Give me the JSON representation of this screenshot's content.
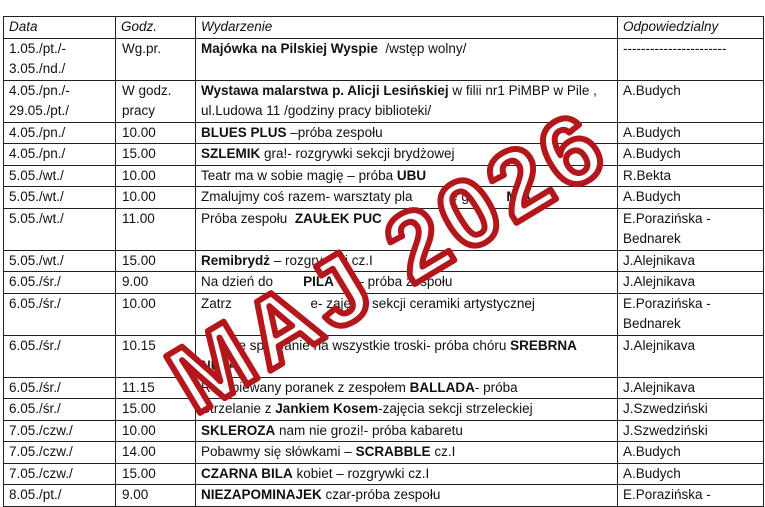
{
  "table": {
    "headers": [
      "Data",
      "Godz.",
      "Wydarzenie",
      "Odpowiedzialny"
    ],
    "rows": [
      {
        "date": "1.05./pt./- 3.05./nd./",
        "time": "Wg.pr.",
        "event": [
          {
            "t": "Majówka na Pilskiej Wyspie",
            "b": true
          },
          {
            "t": "  /wstęp wolny/"
          }
        ],
        "resp": "-----------------------"
      },
      {
        "date": "4.05./pn./- 29.05./pt./",
        "time": "W godz. pracy",
        "event": [
          {
            "t": "Wystawa malarstwa p. Alicji Lesińskiej",
            "b": true
          },
          {
            "t": " w filii nr1 PiMBP w Pile , ul.Ludowa 11 /godziny pracy biblioteki/"
          }
        ],
        "resp": "A.Budych"
      },
      {
        "date": "4.05./pn./",
        "time": "10.00",
        "event": [
          {
            "t": "BLUES PLUS",
            "b": true
          },
          {
            "t": " –próba zespołu"
          }
        ],
        "resp": "A.Budych"
      },
      {
        "date": "4.05./pn./",
        "time": "15.00",
        "event": [
          {
            "t": "SZLEMIK",
            "b": true
          },
          {
            "t": " gra!- rozgrywki sekcji brydżowej"
          }
        ],
        "resp": "A.Budych"
      },
      {
        "date": "5.05./wt./",
        "time": "10.00",
        "event": [
          {
            "t": "Teatr ma w sobie magię – próba "
          },
          {
            "t": "UBU",
            "b": true
          }
        ],
        "resp": "R.Bekta"
      },
      {
        "date": "5.05./wt./",
        "time": "10.00",
        "event": [
          {
            "t": "Zmalujmy coś razem- warsztaty pla        ne g          "
          },
          {
            "t": "MIA",
            "b": true
          }
        ],
        "resp": "A.Budych"
      },
      {
        "date": "5.05./wt./",
        "time": "11.00",
        "event": [
          {
            "t": "Próba zespołu  "
          },
          {
            "t": "ZAUŁEK PUC",
            "b": true
          }
        ],
        "resp": "E.Porazińska - Bednarek"
      },
      {
        "date": "5.05./wt./",
        "time": "15.00",
        "event": [
          {
            "t": "Remibrydż",
            "b": true
          },
          {
            "t": " – rozgry      i cz.I"
          }
        ],
        "resp": "J.Alejnikava"
      },
      {
        "date": "6.05./śr./",
        "time": "9.00",
        "event": [
          {
            "t": "Na dzień do        "
          },
          {
            "t": "PILA",
            "b": true
          },
          {
            "t": "      – próba zespołu"
          }
        ],
        "resp": "J.Alejnikava"
      },
      {
        "date": "6.05./śr./",
        "time": "10.00",
        "event": [
          {
            "t": "Zatrz          ne       e- zajęcia sekcji ceramiki artystycznej"
          }
        ],
        "resp": "E.Porazińska - Bednarek"
      },
      {
        "date": "6.05./śr./",
        "time": "10.15",
        "event": [
          {
            "t": "          e spiewanie na wszystkie troski- próba chóru "
          },
          {
            "t": "SREBRNA NUTA",
            "b": true
          }
        ],
        "resp": "J.Alejnikava"
      },
      {
        "date": "6.05./śr./",
        "time": "11.15",
        "event": [
          {
            "t": "Rozśpiewany poranek z zespołem "
          },
          {
            "t": "BALLADA",
            "b": true
          },
          {
            "t": "- próba"
          }
        ],
        "resp": "J.Alejnikava"
      },
      {
        "date": "6.05./śr./",
        "time": "15.00",
        "event": [
          {
            "t": "Strzelanie z "
          },
          {
            "t": "Jankiem Kosem",
            "b": true
          },
          {
            "t": "-zajęcia sekcji strzeleckiej"
          }
        ],
        "resp": "J.Szwedziński"
      },
      {
        "date": "7.05./czw./",
        "time": "10.00",
        "event": [
          {
            "t": "SKLEROZA",
            "b": true
          },
          {
            "t": " nam nie grozi!- próba kabaretu"
          }
        ],
        "resp": "J.Szwedziński"
      },
      {
        "date": "7.05./czw./",
        "time": "14.00",
        "event": [
          {
            "t": "Pobawmy się słówkami – "
          },
          {
            "t": "SCRABBLE",
            "b": true
          },
          {
            "t": " cz.I"
          }
        ],
        "resp": "A.Budych"
      },
      {
        "date": "7.05./czw./",
        "time": "15.00",
        "event": [
          {
            "t": "CZARNA BILA",
            "b": true
          },
          {
            "t": " kobiet – rozgrywki cz.I"
          }
        ],
        "resp": "A.Budych"
      },
      {
        "date": "8.05./pt./",
        "time": "9.00",
        "event": [
          {
            "t": "NIEZAPOMINAJEK",
            "b": true
          },
          {
            "t": " czar-próba zespołu"
          }
        ],
        "resp": "E.Porazińska -"
      }
    ]
  },
  "stamp": {
    "text": "MAJ 2026",
    "color": "#b3171c"
  }
}
